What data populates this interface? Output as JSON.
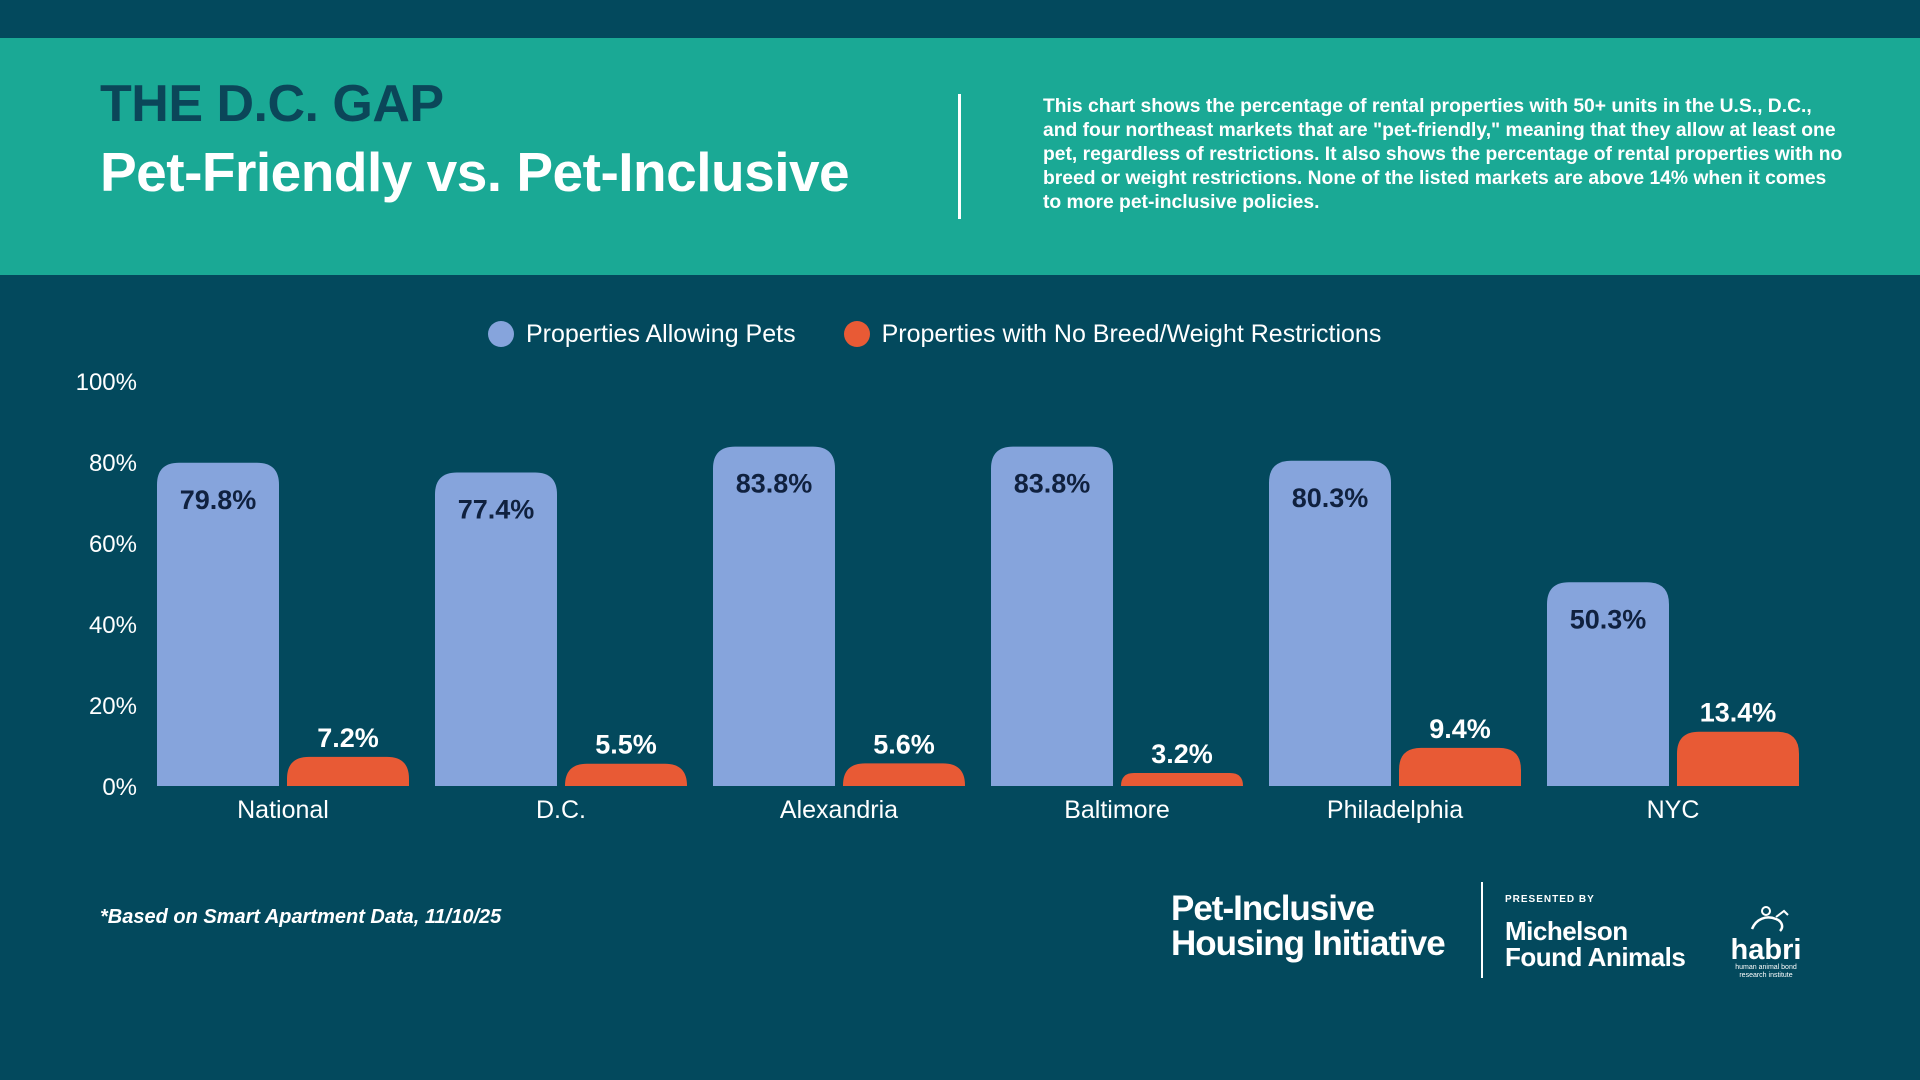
{
  "header": {
    "kicker": "THE D.C. GAP",
    "title": "Pet-Friendly vs. Pet-Inclusive",
    "description": "This chart shows the percentage of rental properties with 50+ units in the U.S., D.C., and four northeast markets that are \"pet-friendly,\" meaning that they allow at least one pet, regardless of restrictions. It also shows the percentage of rental properties with no breed or weight restrictions. None of the listed markets are above 14% when it comes to more pet-inclusive policies."
  },
  "colors": {
    "background": "#03495d",
    "banner": "#1aa995",
    "kicker": "#0b4659",
    "series_allowing": "#86a4dc",
    "series_no_restrictions": "#e85a35",
    "allowing_label": "#10213f"
  },
  "chart_data": {
    "type": "bar",
    "categories": [
      "National",
      "D.C.",
      "Alexandria",
      "Baltimore",
      "Philadelphia",
      "NYC"
    ],
    "series": [
      {
        "name": "Properties Allowing Pets",
        "values": [
          79.8,
          77.4,
          83.8,
          83.8,
          80.3,
          50.3
        ],
        "labels": [
          "79.8%",
          "77.4%",
          "83.8%",
          "83.8%",
          "80.3%",
          "50.3%"
        ]
      },
      {
        "name": "Properties with No Breed/Weight Restrictions",
        "values": [
          7.2,
          5.5,
          5.6,
          3.2,
          9.4,
          13.4
        ],
        "labels": [
          "7.2%",
          "5.5%",
          "5.6%",
          "3.2%",
          "9.4%",
          "13.4%"
        ]
      }
    ],
    "yticks": [
      "0%",
      "20%",
      "40%",
      "60%",
      "80%",
      "100%"
    ],
    "ylim": [
      0,
      100
    ],
    "grid": false,
    "legend": "top-center"
  },
  "footnote": "*Based on Smart Apartment Data, 11/10/25",
  "brands": {
    "pihi_line1": "Pet-Inclusive",
    "pihi_line2": "Housing Initiative",
    "presented_by": "PRESENTED BY",
    "mfa_line1": "Michelson",
    "mfa_line2": "Found Animals",
    "habri_word": "habri",
    "habri_sub1": "human animal bond",
    "habri_sub2": "research institute"
  }
}
